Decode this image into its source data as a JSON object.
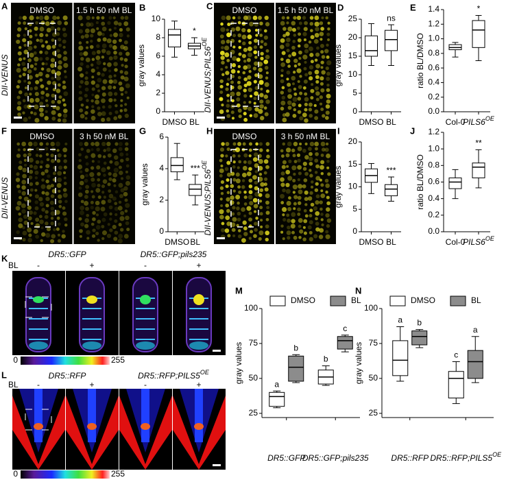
{
  "figure": {
    "image_panels": [
      {
        "letter": "A",
        "side_label": {
          "text": "DII-VENUS"
        },
        "captions": [
          "DMSO",
          "1.5 h 50 nM BL"
        ]
      },
      {
        "letter": "C",
        "side_label": {
          "text": "DII-VENUS;PILS6",
          "sup": "OE"
        },
        "captions": [
          "DMSO",
          "1.5 h 50 nM BL"
        ]
      },
      {
        "letter": "F",
        "side_label": {
          "text": "DII-VENUS"
        },
        "captions": [
          "DMSO",
          "3 h 50 nM BL"
        ]
      },
      {
        "letter": "H",
        "side_label": {
          "text": "DII-VENUS;PILS6",
          "sup": "OE"
        },
        "captions": [
          "DMSO",
          "3 h 50 nM BL"
        ]
      }
    ],
    "reporter_panels": [
      {
        "letter": "K",
        "treatment": "BL",
        "genotypes": [
          {
            "text": "DR5::GFP"
          },
          {
            "text": "DR5::GFP;pils235"
          }
        ],
        "signs": [
          "-",
          "+",
          "-",
          "+"
        ],
        "colorbar": [
          0,
          255
        ]
      },
      {
        "letter": "L",
        "treatment": "BL",
        "genotypes": [
          {
            "text": "DR5::RFP"
          },
          {
            "text": "DR5::RFP;PILS5",
            "sup": "OE"
          }
        ],
        "signs": [
          "-",
          "+",
          "-",
          "+"
        ],
        "colorbar": [
          0,
          255
        ]
      }
    ]
  },
  "chart_data": [
    {
      "type": "box",
      "panel": "B",
      "ylabel": "gray values",
      "ylim": [
        0,
        10
      ],
      "yticks": [
        0,
        2,
        4,
        6,
        8,
        10
      ],
      "categories": [
        {
          "text": "DMSO"
        },
        {
          "text": "BL"
        }
      ],
      "series": [
        {
          "color": "#ffffff",
          "letters": [
            null,
            "*"
          ],
          "values": [
            {
              "min": 5.9,
              "q1": 7,
              "median": 8.3,
              "q3": 8.9,
              "max": 9.8
            },
            {
              "min": 6.1,
              "q1": 6.8,
              "median": 7.1,
              "q3": 7.4,
              "max": 8
            }
          ]
        }
      ]
    },
    {
      "type": "box",
      "panel": "D",
      "ylabel": "gray values",
      "ylim": [
        0,
        25
      ],
      "yticks": [
        0,
        5,
        10,
        15,
        20,
        25
      ],
      "categories": [
        {
          "text": "DMSO"
        },
        {
          "text": "BL"
        }
      ],
      "series": [
        {
          "color": "#ffffff",
          "letters": [
            null,
            "ns"
          ],
          "values": [
            {
              "min": 12.5,
              "q1": 15,
              "median": 16.5,
              "q3": 20.5,
              "max": 23.8
            },
            {
              "min": 12.5,
              "q1": 16.5,
              "median": 19.5,
              "q3": 22,
              "max": 23.5
            }
          ]
        }
      ]
    },
    {
      "type": "box",
      "panel": "E",
      "ylabel": "ratio BL/DMSO",
      "ylim": [
        0,
        1.4
      ],
      "yticks": [
        {
          "value": 0,
          "label": "0.0"
        },
        0.2,
        0.4,
        0.6,
        0.8,
        {
          "value": 1,
          "label": "1.0"
        },
        1.2,
        1.4
      ],
      "categories": [
        {
          "text": "Col-0"
        },
        {
          "text": "PILS6",
          "sup": "OE"
        }
      ],
      "series": [
        {
          "color": "#ffffff",
          "letters": [
            null,
            "*"
          ],
          "values": [
            {
              "min": 0.75,
              "q1": 0.85,
              "median": 0.88,
              "q3": 0.92,
              "max": 0.95
            },
            {
              "min": 0.7,
              "q1": 0.88,
              "median": 1.12,
              "q3": 1.25,
              "max": 1.32
            }
          ]
        }
      ]
    },
    {
      "type": "box",
      "panel": "G",
      "ylabel": "gray values",
      "ylim": [
        0,
        6
      ],
      "yticks": [
        0,
        2,
        4,
        6
      ],
      "categories": [
        {
          "text": "DMSO"
        },
        {
          "text": "BL"
        }
      ],
      "series": [
        {
          "color": "#ffffff",
          "letters": [
            null,
            "***"
          ],
          "values": [
            {
              "min": 3.3,
              "q1": 3.8,
              "median": 4.2,
              "q3": 4.7,
              "max": 5.6
            },
            {
              "min": 1.7,
              "q1": 2.3,
              "median": 2.7,
              "q3": 3,
              "max": 3.6
            }
          ]
        }
      ]
    },
    {
      "type": "box",
      "panel": "I",
      "ylabel": "gray values",
      "ylim": [
        0,
        20
      ],
      "yticks": [
        0,
        5,
        10,
        15,
        20
      ],
      "categories": [
        {
          "text": "DMSO"
        },
        {
          "text": "BL"
        }
      ],
      "series": [
        {
          "color": "#ffffff",
          "letters": [
            null,
            "***"
          ],
          "values": [
            {
              "min": 8.5,
              "q1": 11,
              "median": 12.5,
              "q3": 14,
              "max": 15.2
            },
            {
              "min": 6.8,
              "q1": 8,
              "median": 9.5,
              "q3": 10.5,
              "max": 12.2
            }
          ]
        }
      ]
    },
    {
      "type": "box",
      "panel": "J",
      "ylabel": "ratio BL/DMSO",
      "ylim": [
        0,
        1.2
      ],
      "yticks": [
        {
          "value": 0,
          "label": "0.0"
        },
        0.2,
        0.4,
        0.6,
        0.8,
        {
          "value": 1,
          "label": "1.0"
        },
        1.2
      ],
      "categories": [
        {
          "text": "Col-0"
        },
        {
          "text": "PILS6",
          "sup": "OE"
        }
      ],
      "series": [
        {
          "color": "#ffffff",
          "letters": [
            null,
            "**"
          ],
          "values": [
            {
              "min": 0.4,
              "q1": 0.52,
              "median": 0.6,
              "q3": 0.65,
              "max": 0.75
            },
            {
              "min": 0.53,
              "q1": 0.65,
              "median": 0.78,
              "q3": 0.83,
              "max": 0.99
            }
          ]
        }
      ]
    },
    {
      "type": "box",
      "panel": "M",
      "ylabel": "gray values",
      "ylim": [
        22,
        100
      ],
      "yticks": [
        25,
        50,
        75,
        100
      ],
      "categories": [
        {
          "text": "DR5::GFP"
        },
        {
          "text": "DR5::GFP;pils235"
        }
      ],
      "series": [
        {
          "name": "DMSO",
          "color": "#ffffff",
          "letters": [
            "a",
            "b"
          ],
          "values": [
            {
              "min": 29,
              "q1": 30,
              "median": 37,
              "q3": 40,
              "max": 41
            },
            {
              "min": 45,
              "q1": 46,
              "median": 51,
              "q3": 56,
              "max": 59
            }
          ]
        },
        {
          "name": "BL",
          "color": "#8c8c8c",
          "letters": [
            "b",
            "c"
          ],
          "values": [
            {
              "min": 47,
              "q1": 48,
              "median": 58,
              "q3": 66,
              "max": 67
            },
            {
              "min": 69,
              "q1": 71,
              "median": 77,
              "q3": 80,
              "max": 81
            }
          ]
        }
      ]
    },
    {
      "type": "box",
      "panel": "N",
      "ylabel": "gray values",
      "ylim": [
        22,
        100
      ],
      "yticks": [
        25,
        50,
        75,
        100
      ],
      "categories": [
        {
          "text": "DR5::RFP"
        },
        {
          "text": "DR5::RFP;PILS5",
          "sup": "OE"
        }
      ],
      "series": [
        {
          "name": "DMSO",
          "color": "#ffffff",
          "letters": [
            "a",
            "c"
          ],
          "values": [
            {
              "min": 48,
              "q1": 52,
              "median": 63,
              "q3": 77,
              "max": 87
            },
            {
              "min": 32,
              "q1": 36,
              "median": 50,
              "q3": 55,
              "max": 62
            }
          ]
        },
        {
          "name": "BL",
          "color": "#8c8c8c",
          "letters": [
            "b",
            "a"
          ],
          "values": [
            {
              "min": 72,
              "q1": 74,
              "median": 80,
              "q3": 84,
              "max": 85
            },
            {
              "min": 47,
              "q1": 50,
              "median": 62,
              "q3": 70,
              "max": 80
            }
          ]
        }
      ]
    }
  ]
}
